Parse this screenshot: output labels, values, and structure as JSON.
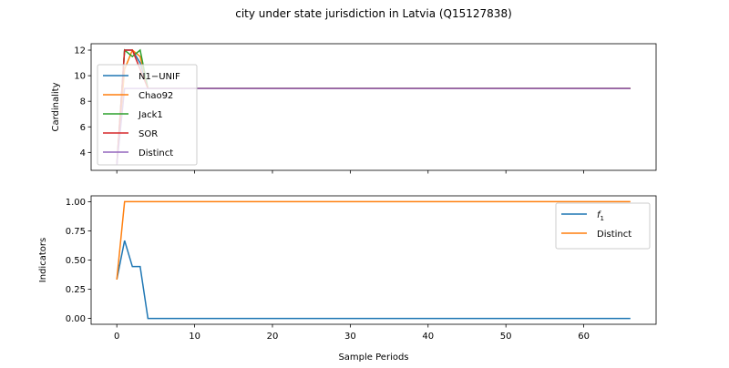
{
  "figure": {
    "title": "city under state jurisdiction in Latvia (Q15127838)",
    "xlabel": "Sample Periods"
  },
  "chart_data": [
    {
      "type": "line",
      "ylabel": "Cardinality",
      "xlim": [
        -3.3,
        69.3
      ],
      "ylim": [
        2.6,
        12.5
      ],
      "xticks": [
        0,
        10,
        20,
        30,
        40,
        50,
        60
      ],
      "yticks": [
        4,
        6,
        8,
        10,
        12
      ],
      "xtick_labels_visible": false,
      "grid": false,
      "legend": "center-left",
      "series": [
        {
          "name": "N1−UNIF",
          "color": "#1f77b4",
          "x": [
            0,
            1,
            2,
            3,
            4,
            66
          ],
          "y": [
            3,
            12,
            12,
            11,
            9,
            9
          ]
        },
        {
          "name": "Chao92",
          "color": "#ff7f0e",
          "x": [
            0,
            1,
            2,
            3,
            4,
            66
          ],
          "y": [
            3,
            10.5,
            12,
            11.5,
            9,
            9
          ]
        },
        {
          "name": "Jack1",
          "color": "#2ca02c",
          "x": [
            0,
            1,
            2,
            3,
            4,
            66
          ],
          "y": [
            3,
            12,
            11.5,
            12,
            9,
            9
          ]
        },
        {
          "name": "SOR",
          "color": "#d62728",
          "x": [
            0,
            1,
            2,
            3,
            4,
            66
          ],
          "y": [
            3,
            12,
            12,
            10.5,
            9,
            9
          ]
        },
        {
          "name": "Distinct",
          "color": "#9467bd",
          "x": [
            0,
            1,
            66
          ],
          "y": [
            3,
            9,
            9
          ]
        }
      ]
    },
    {
      "type": "line",
      "ylabel": "Indicators",
      "xlim": [
        -3.3,
        69.3
      ],
      "ylim": [
        -0.05,
        1.05
      ],
      "xticks": [
        0,
        10,
        20,
        30,
        40,
        50,
        60
      ],
      "yticks": [
        0.0,
        0.25,
        0.5,
        0.75,
        1.0
      ],
      "ytick_labels": [
        "0.00",
        "0.25",
        "0.50",
        "0.75",
        "1.00"
      ],
      "xtick_labels": [
        "0",
        "10",
        "20",
        "30",
        "40",
        "50",
        "60"
      ],
      "grid": false,
      "legend": "upper-right",
      "series": [
        {
          "name": "f1",
          "display_base": "f",
          "display_sub": "1",
          "color": "#1f77b4",
          "x": [
            0,
            1,
            2,
            3,
            4,
            66
          ],
          "y": [
            0.333,
            0.667,
            0.444,
            0.444,
            0.0,
            0.0
          ]
        },
        {
          "name": "Distinct",
          "color": "#ff7f0e",
          "x": [
            0,
            1,
            66
          ],
          "y": [
            0.333,
            1.0,
            1.0
          ]
        }
      ]
    }
  ]
}
